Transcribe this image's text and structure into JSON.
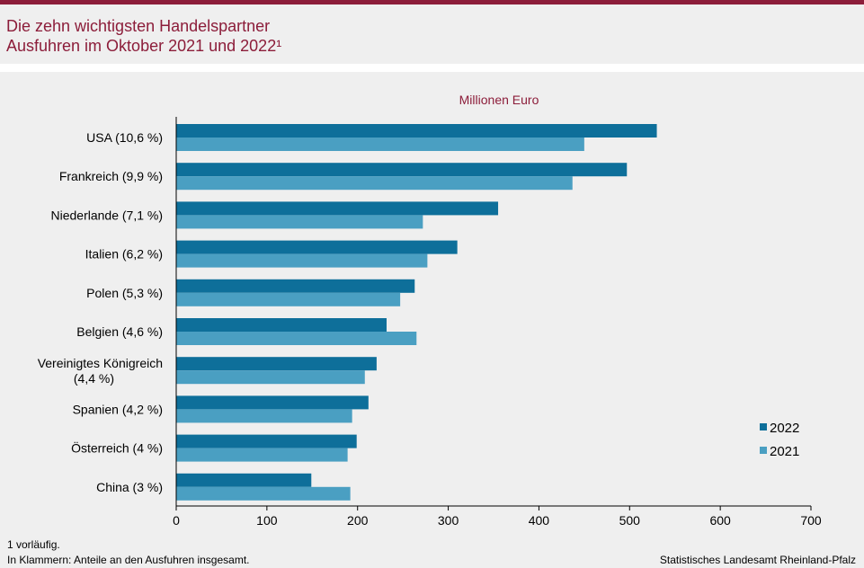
{
  "header": {
    "title_line1": "Die zehn wichtigsten Handelspartner",
    "title_line2": "Ausfuhren im Oktober 2021 und 2022¹"
  },
  "colors": {
    "brand": "#8c1d3a",
    "series_2022": "#0e6f9a",
    "series_2021": "#4a9fc2",
    "background": "#efefef"
  },
  "chart_data": {
    "type": "bar",
    "orientation": "horizontal",
    "unit_label": "Millionen  Euro",
    "categories": [
      [
        "USA (10,6 %)"
      ],
      [
        "Frankreich (9,9 %)"
      ],
      [
        "Niederlande (7,1 %)"
      ],
      [
        "Italien (6,2 %)"
      ],
      [
        "Polen (5,3 %)"
      ],
      [
        "Belgien (4,6 %)"
      ],
      [
        "Vereinigtes Königreich",
        "(4,4 %)"
      ],
      [
        "Spanien (4,2 %)"
      ],
      [
        "Österreich (4 %)"
      ],
      [
        "China (3 %)"
      ]
    ],
    "series": [
      {
        "name": "2022",
        "values": [
          530,
          497,
          355,
          310,
          263,
          232,
          221,
          212,
          199,
          149
        ]
      },
      {
        "name": "2021",
        "values": [
          450,
          437,
          272,
          277,
          247,
          265,
          208,
          194,
          189,
          192
        ]
      }
    ],
    "xlim": [
      0,
      700
    ],
    "xticks": [
      0,
      100,
      200,
      300,
      400,
      500,
      600,
      700
    ],
    "grid": false,
    "legend_position": "bottom-right"
  },
  "footer": {
    "note1": "1 vorläufig.",
    "note2": "In Klammern: Anteile an den Ausfuhren insgesamt.",
    "source": "Statistisches Landesamt Rheinland-Pfalz"
  }
}
